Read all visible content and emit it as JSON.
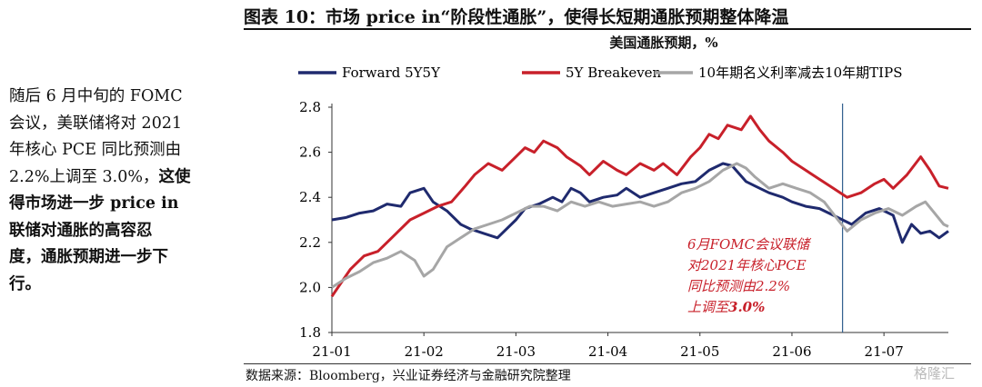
{
  "sidebar": {
    "line1": "随后 6 月中旬的 FOMC",
    "line2": "会议，美联储将对 2021",
    "line3": "年核心 PCE 同比预测由",
    "line4_normal": "2.2%上调至 3.0%，",
    "line4_bold": "这使",
    "line5": "得市场进一步 price in",
    "line6": "联储对通胀的高容忍",
    "line7": "度，通胀预期进一步下",
    "line8": "行。"
  },
  "figure": {
    "title": "图表 10：市场 price in“阶段性通胀”，使得长短期通胀预期整体降温",
    "source": "数据来源：Bloomberg，兴业证券经济与金融研究院整理",
    "watermark": "格隆汇"
  },
  "chart_data": {
    "type": "line",
    "title": "美国通胀预期，%",
    "ylim": [
      1.8,
      2.8
    ],
    "yticks": [
      "1.8",
      "2.0",
      "2.2",
      "2.4",
      "2.6",
      "2.8"
    ],
    "xticks": [
      "21-01",
      "21-02",
      "21-03",
      "21-04",
      "21-05",
      "21-06",
      "21-07"
    ],
    "x_range_months": [
      0,
      6.7
    ],
    "vline_at": 5.55,
    "legend_position": "top",
    "series": [
      {
        "name": "Forward 5Y5Y",
        "color": "#1f2a6e",
        "points": [
          [
            0,
            2.3
          ],
          [
            0.15,
            2.31
          ],
          [
            0.3,
            2.33
          ],
          [
            0.45,
            2.34
          ],
          [
            0.6,
            2.37
          ],
          [
            0.75,
            2.36
          ],
          [
            0.85,
            2.42
          ],
          [
            1.0,
            2.44
          ],
          [
            1.1,
            2.38
          ],
          [
            1.25,
            2.34
          ],
          [
            1.4,
            2.28
          ],
          [
            1.5,
            2.26
          ],
          [
            1.65,
            2.24
          ],
          [
            1.8,
            2.22
          ],
          [
            2.0,
            2.3
          ],
          [
            2.1,
            2.35
          ],
          [
            2.25,
            2.37
          ],
          [
            2.4,
            2.4
          ],
          [
            2.5,
            2.38
          ],
          [
            2.6,
            2.44
          ],
          [
            2.7,
            2.42
          ],
          [
            2.8,
            2.38
          ],
          [
            2.95,
            2.4
          ],
          [
            3.1,
            2.41
          ],
          [
            3.2,
            2.44
          ],
          [
            3.35,
            2.4
          ],
          [
            3.5,
            2.42
          ],
          [
            3.65,
            2.44
          ],
          [
            3.8,
            2.46
          ],
          [
            3.95,
            2.47
          ],
          [
            4.1,
            2.52
          ],
          [
            4.25,
            2.55
          ],
          [
            4.35,
            2.54
          ],
          [
            4.5,
            2.47
          ],
          [
            4.6,
            2.45
          ],
          [
            4.75,
            2.42
          ],
          [
            4.9,
            2.4
          ],
          [
            5.0,
            2.38
          ],
          [
            5.15,
            2.36
          ],
          [
            5.3,
            2.35
          ],
          [
            5.45,
            2.32
          ],
          [
            5.55,
            2.3
          ],
          [
            5.65,
            2.28
          ],
          [
            5.8,
            2.33
          ],
          [
            5.95,
            2.35
          ],
          [
            6.1,
            2.32
          ],
          [
            6.2,
            2.2
          ],
          [
            6.3,
            2.28
          ],
          [
            6.4,
            2.24
          ],
          [
            6.5,
            2.25
          ],
          [
            6.6,
            2.22
          ],
          [
            6.7,
            2.25
          ]
        ]
      },
      {
        "name": "5Y Breakeven",
        "color": "#c8202a",
        "points": [
          [
            0,
            1.96
          ],
          [
            0.1,
            2.02
          ],
          [
            0.2,
            2.08
          ],
          [
            0.35,
            2.14
          ],
          [
            0.5,
            2.16
          ],
          [
            0.6,
            2.2
          ],
          [
            0.7,
            2.24
          ],
          [
            0.85,
            2.3
          ],
          [
            1.0,
            2.33
          ],
          [
            1.15,
            2.36
          ],
          [
            1.3,
            2.38
          ],
          [
            1.45,
            2.45
          ],
          [
            1.55,
            2.5
          ],
          [
            1.7,
            2.55
          ],
          [
            1.85,
            2.52
          ],
          [
            2.0,
            2.58
          ],
          [
            2.1,
            2.62
          ],
          [
            2.2,
            2.6
          ],
          [
            2.3,
            2.65
          ],
          [
            2.45,
            2.62
          ],
          [
            2.55,
            2.58
          ],
          [
            2.7,
            2.54
          ],
          [
            2.8,
            2.5
          ],
          [
            2.95,
            2.56
          ],
          [
            3.1,
            2.52
          ],
          [
            3.2,
            2.5
          ],
          [
            3.35,
            2.55
          ],
          [
            3.5,
            2.52
          ],
          [
            3.6,
            2.55
          ],
          [
            3.75,
            2.5
          ],
          [
            3.9,
            2.58
          ],
          [
            4.0,
            2.62
          ],
          [
            4.1,
            2.68
          ],
          [
            4.2,
            2.66
          ],
          [
            4.3,
            2.72
          ],
          [
            4.45,
            2.7
          ],
          [
            4.55,
            2.76
          ],
          [
            4.65,
            2.7
          ],
          [
            4.75,
            2.65
          ],
          [
            4.9,
            2.6
          ],
          [
            5.0,
            2.56
          ],
          [
            5.15,
            2.52
          ],
          [
            5.3,
            2.48
          ],
          [
            5.45,
            2.44
          ],
          [
            5.6,
            2.4
          ],
          [
            5.75,
            2.42
          ],
          [
            5.9,
            2.46
          ],
          [
            6.0,
            2.48
          ],
          [
            6.1,
            2.44
          ],
          [
            6.25,
            2.5
          ],
          [
            6.4,
            2.58
          ],
          [
            6.5,
            2.52
          ],
          [
            6.6,
            2.45
          ],
          [
            6.7,
            2.44
          ]
        ]
      },
      {
        "name": "10年期名义利率减去10年期TIPS",
        "color": "#a6a6a6",
        "points": [
          [
            0,
            2.0
          ],
          [
            0.15,
            2.04
          ],
          [
            0.3,
            2.07
          ],
          [
            0.45,
            2.11
          ],
          [
            0.6,
            2.13
          ],
          [
            0.75,
            2.16
          ],
          [
            0.9,
            2.12
          ],
          [
            1.0,
            2.05
          ],
          [
            1.1,
            2.08
          ],
          [
            1.25,
            2.18
          ],
          [
            1.4,
            2.22
          ],
          [
            1.55,
            2.26
          ],
          [
            1.7,
            2.28
          ],
          [
            1.85,
            2.3
          ],
          [
            2.0,
            2.33
          ],
          [
            2.15,
            2.36
          ],
          [
            2.3,
            2.36
          ],
          [
            2.45,
            2.34
          ],
          [
            2.6,
            2.38
          ],
          [
            2.75,
            2.36
          ],
          [
            2.9,
            2.38
          ],
          [
            3.05,
            2.36
          ],
          [
            3.2,
            2.37
          ],
          [
            3.35,
            2.38
          ],
          [
            3.5,
            2.36
          ],
          [
            3.65,
            2.38
          ],
          [
            3.8,
            2.42
          ],
          [
            3.95,
            2.44
          ],
          [
            4.1,
            2.47
          ],
          [
            4.25,
            2.52
          ],
          [
            4.4,
            2.55
          ],
          [
            4.5,
            2.53
          ],
          [
            4.6,
            2.49
          ],
          [
            4.75,
            2.44
          ],
          [
            4.9,
            2.46
          ],
          [
            5.05,
            2.44
          ],
          [
            5.2,
            2.42
          ],
          [
            5.35,
            2.38
          ],
          [
            5.5,
            2.3
          ],
          [
            5.6,
            2.25
          ],
          [
            5.75,
            2.3
          ],
          [
            5.9,
            2.33
          ],
          [
            6.05,
            2.35
          ],
          [
            6.2,
            2.32
          ],
          [
            6.35,
            2.36
          ],
          [
            6.45,
            2.38
          ],
          [
            6.55,
            2.33
          ],
          [
            6.65,
            2.28
          ],
          [
            6.7,
            2.27
          ]
        ]
      }
    ],
    "annotation": {
      "line1": "6月FOMC会议联储",
      "line2": "对2021年核心PCE",
      "line3": "同比预测由2.2%",
      "line4_prefix": "上调至",
      "line4_value": "3.0%"
    }
  }
}
